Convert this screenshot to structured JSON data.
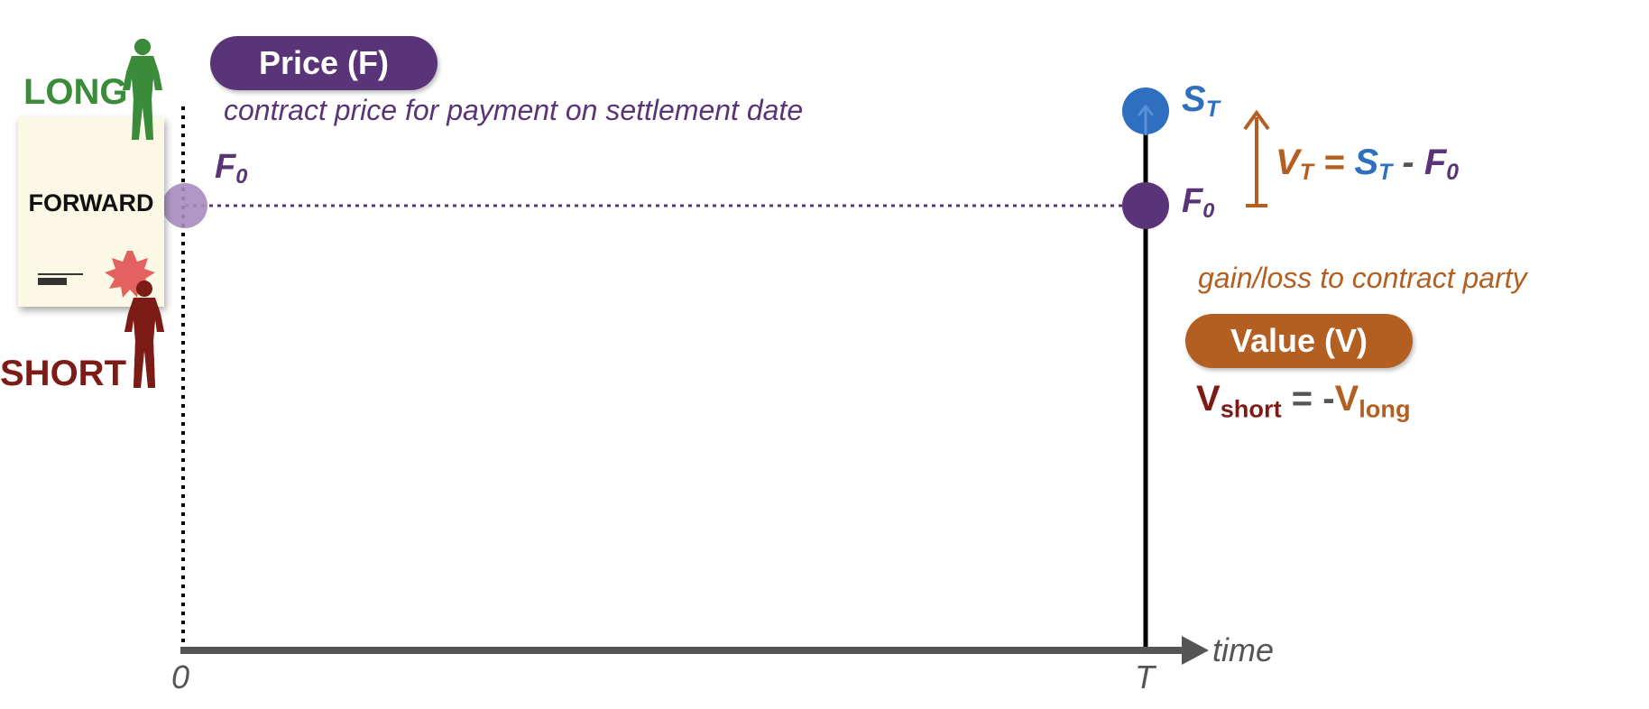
{
  "price_badge": "Price (F)",
  "price_caption": "contract price for payment on settlement date",
  "value_badge": "Value (V)",
  "value_caption": "gain/loss to contract party",
  "contract": {
    "title": "FORWARD",
    "long_label": "LONG",
    "short_label": "SHORT"
  },
  "labels": {
    "f0_start": {
      "base": "F",
      "sub": "0"
    },
    "f0_end": {
      "base": "F",
      "sub": "0"
    },
    "st": {
      "base": "S",
      "sub": "T"
    }
  },
  "formula": {
    "v": "V",
    "v_sub": "T",
    "eq": " = ",
    "s": "S",
    "s_sub": "T",
    "minus": " - ",
    "f": "F",
    "f_sub": "0"
  },
  "relation": {
    "v1": "V",
    "v1_sub": "short",
    "eq": " = -",
    "v2": "V",
    "v2_sub": "long"
  },
  "axis": {
    "x_label": "time",
    "tick_start": "0",
    "tick_end": "T"
  },
  "colors": {
    "long_green": "#3a8b3a",
    "short_red": "#7d1b17",
    "price_purple": "#5a3478",
    "value_orange": "#b35f22",
    "spot_blue": "#2e6fc0"
  }
}
